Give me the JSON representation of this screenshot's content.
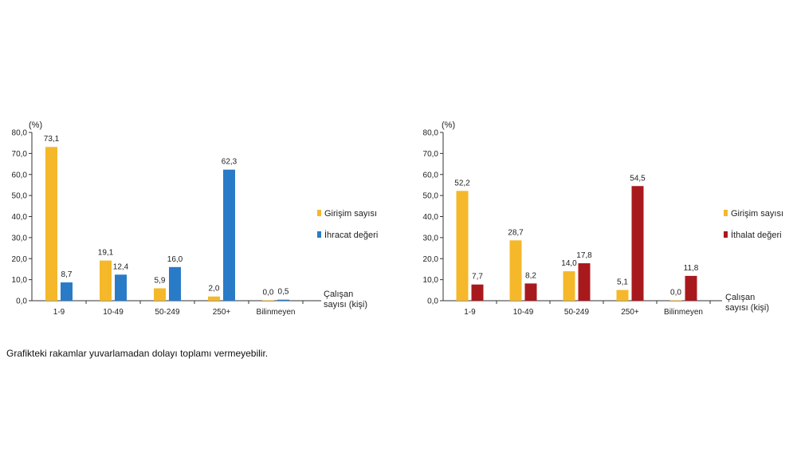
{
  "footnote": "Grafikteki rakamlar yuvarlamadan dolayı toplamı vermeyebilir.",
  "colors": {
    "girisim": "#F5B82A",
    "ihracat": "#2A7BC7",
    "ithalat": "#A8191D",
    "axis": "#333333"
  },
  "chart_data": [
    {
      "type": "bar",
      "title": "",
      "unit_label": "(%)",
      "xlabel": "Çalışan sayısı (kişi)",
      "xlabel_lines": [
        "Çalışan",
        "sayısı (kişi)"
      ],
      "ylim": [
        0,
        80
      ],
      "yticks": [
        "0,0",
        "10,0",
        "20,0",
        "30,0",
        "40,0",
        "50,0",
        "60,0",
        "70,0",
        "80,0"
      ],
      "categories": [
        "1-9",
        "10-49",
        "50-249",
        "250+",
        "Bilinmeyen"
      ],
      "legend_position": "right",
      "series": [
        {
          "name": "Girişim sayısı",
          "color_key": "girisim",
          "values": [
            73.1,
            19.1,
            5.9,
            2.0,
            0.0
          ],
          "labels": [
            "73,1",
            "19,1",
            "5,9",
            "2,0",
            "0,0"
          ]
        },
        {
          "name": "İhracat değeri",
          "color_key": "ihracat",
          "values": [
            8.7,
            12.4,
            16.0,
            62.3,
            0.5
          ],
          "labels": [
            "8,7",
            "12,4",
            "16,0",
            "62,3",
            "0,5"
          ]
        }
      ]
    },
    {
      "type": "bar",
      "title": "",
      "unit_label": "(%)",
      "xlabel": "Çalışan sayısı (kişi)",
      "xlabel_lines": [
        "Çalışan",
        "sayısı (kişi)"
      ],
      "ylim": [
        0,
        80
      ],
      "yticks": [
        "0,0",
        "10,0",
        "20,0",
        "30,0",
        "40,0",
        "50,0",
        "60,0",
        "70,0",
        "80,0"
      ],
      "categories": [
        "1-9",
        "10-49",
        "50-249",
        "250+",
        "Bilinmeyen"
      ],
      "legend_position": "right",
      "series": [
        {
          "name": "Girişim sayısı",
          "color_key": "girisim",
          "values": [
            52.2,
            28.7,
            14.0,
            5.1,
            0.0
          ],
          "labels": [
            "52,2",
            "28,7",
            "14,0",
            "5,1",
            "0,0"
          ]
        },
        {
          "name": "İthalat değeri",
          "color_key": "ithalat",
          "values": [
            7.7,
            8.2,
            17.8,
            54.5,
            11.8
          ],
          "labels": [
            "7,7",
            "8,2",
            "17,8",
            "54,5",
            "11,8"
          ]
        }
      ]
    }
  ]
}
